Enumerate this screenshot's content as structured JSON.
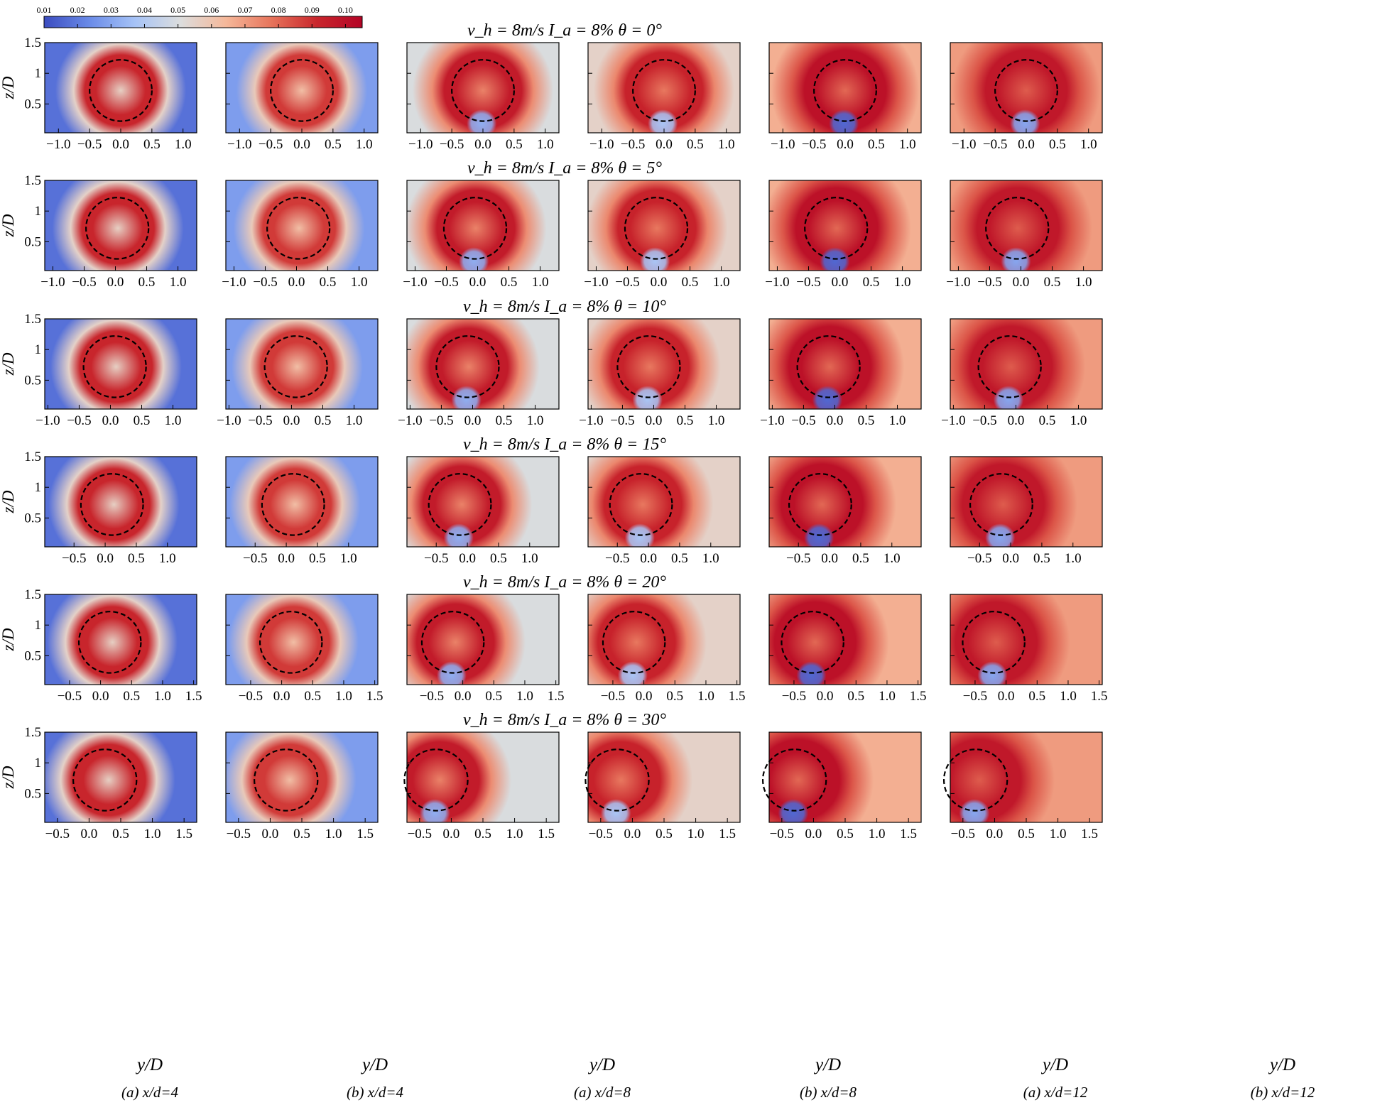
{
  "colorbar": {
    "ticks": [
      "0.01",
      "0.02",
      "0.03",
      "0.04",
      "0.05",
      "0.06",
      "0.07",
      "0.08",
      "0.09",
      "0.10"
    ],
    "range": [
      0.01,
      0.105
    ],
    "colors": [
      "#3b4cc0",
      "#6a8be8",
      "#a6c3f7",
      "#dcdddd",
      "#f5b89a",
      "#e7745b",
      "#c9262c",
      "#b40426"
    ]
  },
  "row_titles": [
    "v_h = 8m/s    I_a = 8%    θ = 0°",
    "v_h = 8m/s    I_a = 8%    θ = 5°",
    "v_h = 8m/s    I_a = 8%    θ = 10°",
    "v_h = 8m/s    I_a = 8%    θ = 15°",
    "v_h = 8m/s    I_a = 8%    θ = 20°",
    "v_h = 8m/s    I_a = 8%    θ = 30°"
  ],
  "column_labels": [
    "(a) x/d=4",
    "(b) x/d=4",
    "(a) x/d=8",
    "(b) x/d=8",
    "(a) x/d=12",
    "(b) x/d=12"
  ],
  "ylabel": "z/D",
  "xlabel": "y/D",
  "chart_data": {
    "type": "heatmap",
    "colormap": "coolwarm",
    "quantity_range": [
      0.01,
      0.105
    ],
    "ylim": [
      0.03,
      1.5
    ],
    "yticks": [
      0.5,
      1,
      1.5
    ],
    "rotor_circle": {
      "z_center": 0.72,
      "radius": 0.5,
      "style": "dashed"
    },
    "rows": [
      {
        "theta": 0,
        "xlim": [
          -1.22,
          1.22
        ],
        "xticks": [
          -1.0,
          -0.5,
          0.0,
          0.5,
          1.0
        ],
        "xcenter": [
          0.0,
          0.0,
          0.0,
          0.0,
          0.0,
          0.0
        ]
      },
      {
        "theta": 5,
        "xlim": [
          -1.13,
          1.3
        ],
        "xticks": [
          -1.0,
          -0.5,
          0.0,
          0.5,
          1.0
        ],
        "xcenter": [
          0.03,
          0.03,
          -0.04,
          -0.04,
          -0.06,
          -0.06
        ]
      },
      {
        "theta": 10,
        "xlim": [
          -1.05,
          1.38
        ],
        "xticks": [
          -1.0,
          -0.5,
          0.0,
          0.5,
          1.0
        ],
        "xcenter": [
          0.07,
          0.07,
          -0.08,
          -0.08,
          -0.1,
          -0.1
        ]
      },
      {
        "theta": 15,
        "xlim": [
          -0.97,
          1.47
        ],
        "xticks": [
          -0.5,
          0.0,
          0.5,
          1.0
        ],
        "xcenter": [
          0.11,
          0.11,
          -0.12,
          -0.12,
          -0.15,
          -0.15
        ]
      },
      {
        "theta": 20,
        "xlim": [
          -0.9,
          1.55
        ],
        "xticks": [
          -0.5,
          0.0,
          0.5,
          1.0,
          1.5
        ],
        "xcenter": [
          0.15,
          0.15,
          -0.16,
          -0.16,
          -0.2,
          -0.2
        ]
      },
      {
        "theta": 30,
        "xlim": [
          -0.7,
          1.7
        ],
        "xticks": [
          -0.5,
          0.0,
          0.5,
          1.0,
          1.5
        ],
        "xcenter": [
          0.25,
          0.25,
          -0.24,
          -0.24,
          -0.3,
          -0.3
        ]
      }
    ],
    "columns": [
      {
        "label": "(a) x/d=4",
        "x_over_d": 4,
        "outer_level": 0.018,
        "peak_level": 0.092,
        "core_level": 0.056,
        "hub_level": null
      },
      {
        "label": "(b) x/d=4",
        "x_over_d": 4,
        "outer_level": 0.028,
        "peak_level": 0.088,
        "core_level": 0.062,
        "hub_level": null
      },
      {
        "label": "(a) x/d=8",
        "x_over_d": 8,
        "outer_level": 0.05,
        "peak_level": 0.096,
        "core_level": 0.075,
        "hub_level": 0.032
      },
      {
        "label": "(b) x/d=8",
        "x_over_d": 8,
        "outer_level": 0.055,
        "peak_level": 0.093,
        "core_level": 0.077,
        "hub_level": 0.038
      },
      {
        "label": "(a) x/d=12",
        "x_over_d": 12,
        "outer_level": 0.066,
        "peak_level": 0.1,
        "core_level": 0.08,
        "hub_level": 0.016
      },
      {
        "label": "(b) x/d=12",
        "x_over_d": 12,
        "outer_level": 0.07,
        "peak_level": 0.097,
        "core_level": 0.082,
        "hub_level": 0.03
      }
    ]
  }
}
